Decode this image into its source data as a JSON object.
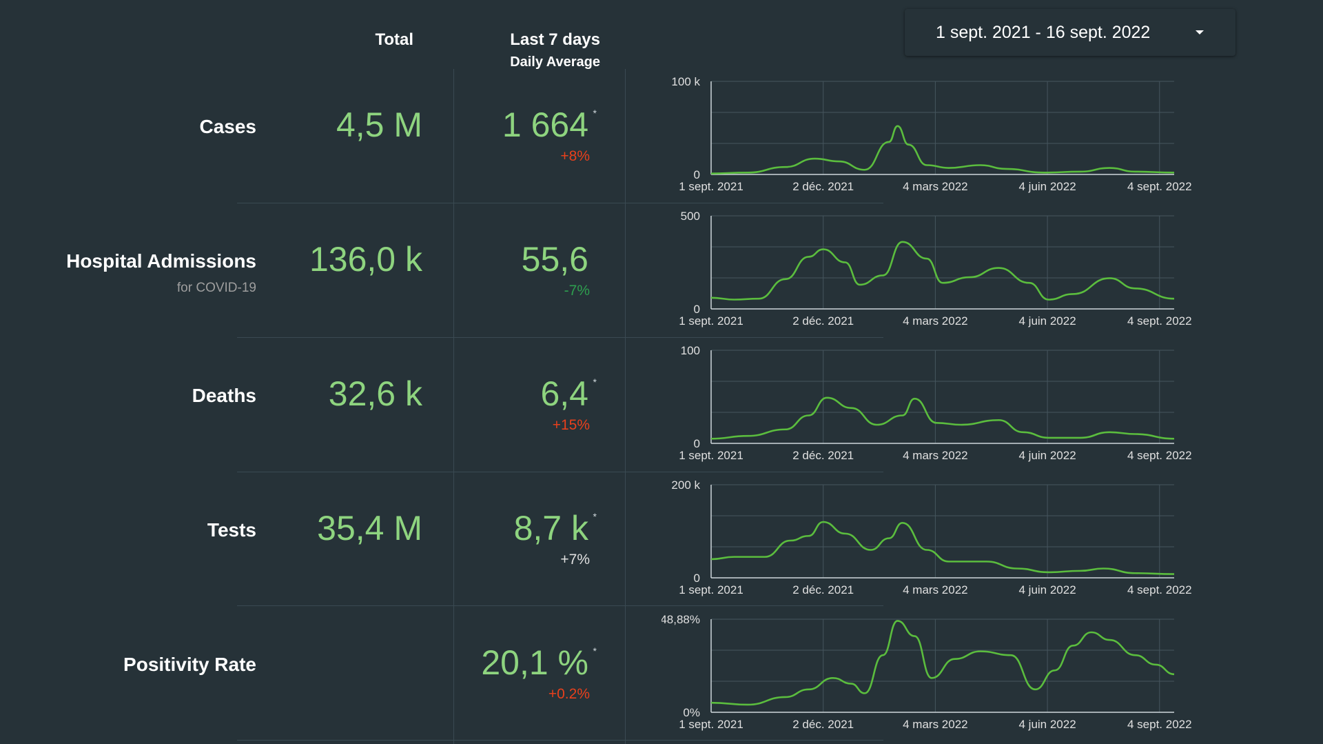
{
  "header": {
    "total": "Total",
    "last7": "Last 7 days",
    "daily_avg": "Daily Average"
  },
  "date_range": {
    "label": "1 sept. 2021 - 16 sept. 2022"
  },
  "colors": {
    "background": "#263238",
    "value_green": "#8ed47f",
    "line_green": "#5bbd3e",
    "increase_red": "#e8401c",
    "decrease_green": "#2e9e4f",
    "neutral": "#e0e0e0"
  },
  "metrics": [
    {
      "label": "Cases",
      "sublabel": "",
      "total": "4,5 M",
      "avg": "1 664",
      "asterisk": "*",
      "change": "+8%",
      "change_color": "#e8401c"
    },
    {
      "label": "Hospital Admissions",
      "sublabel": "for COVID-19",
      "total": "136,0 k",
      "avg": "55,6",
      "asterisk": "",
      "change": "-7%",
      "change_color": "#2e9e4f"
    },
    {
      "label": "Deaths",
      "sublabel": "",
      "total": "32,6 k",
      "avg": "6,4",
      "asterisk": "*",
      "change": "+15%",
      "change_color": "#e8401c"
    },
    {
      "label": "Tests",
      "sublabel": "",
      "total": "35,4 M",
      "avg": "8,7 k",
      "asterisk": "*",
      "change": "+7%",
      "change_color": "#e0e0e0"
    },
    {
      "label": "Positivity Rate",
      "sublabel": "",
      "total": "",
      "avg": "20,1 %",
      "asterisk": "*",
      "change": "+0.2%",
      "change_color": "#e8401c"
    }
  ],
  "chart_data": [
    {
      "type": "line",
      "name": "Cases",
      "x_tick_labels": [
        "1 sept. 2021",
        "2 déc. 2021",
        "4 mars 2022",
        "4 juin 2022",
        "4 sept. 2022"
      ],
      "ylim": [
        0,
        100000
      ],
      "y_tick_labels": [
        "0",
        "100 k"
      ],
      "x": [
        "2021-09-01",
        "2021-10-01",
        "2021-11-01",
        "2021-11-25",
        "2021-12-15",
        "2022-01-05",
        "2022-01-25",
        "2022-02-01",
        "2022-02-10",
        "2022-02-25",
        "2022-03-15",
        "2022-04-10",
        "2022-05-01",
        "2022-06-01",
        "2022-07-01",
        "2022-07-25",
        "2022-08-15",
        "2022-09-16"
      ],
      "values": [
        1000,
        2000,
        8000,
        17000,
        14000,
        5000,
        35000,
        52000,
        32000,
        10000,
        7000,
        10000,
        6000,
        2000,
        3000,
        7000,
        3000,
        2000
      ],
      "grid": true
    },
    {
      "type": "line",
      "name": "Hospital Admissions",
      "x_tick_labels": [
        "1 sept. 2021",
        "2 déc. 2021",
        "4 mars 2022",
        "4 juin 2022",
        "4 sept. 2022"
      ],
      "ylim": [
        0,
        500
      ],
      "y_tick_labels": [
        "0",
        "500"
      ],
      "x": [
        "2021-09-01",
        "2021-09-20",
        "2021-10-10",
        "2021-11-01",
        "2021-11-20",
        "2021-12-02",
        "2021-12-20",
        "2022-01-01",
        "2022-01-20",
        "2022-02-05",
        "2022-02-25",
        "2022-03-10",
        "2022-04-01",
        "2022-04-25",
        "2022-05-20",
        "2022-06-05",
        "2022-06-25",
        "2022-07-25",
        "2022-08-15",
        "2022-09-16"
      ],
      "values": [
        60,
        50,
        55,
        160,
        280,
        320,
        250,
        130,
        180,
        360,
        270,
        140,
        170,
        220,
        140,
        50,
        80,
        165,
        110,
        55
      ],
      "grid": true
    },
    {
      "type": "line",
      "name": "Deaths",
      "x_tick_labels": [
        "1 sept. 2021",
        "2 déc. 2021",
        "4 mars 2022",
        "4 juin 2022",
        "4 sept. 2022"
      ],
      "ylim": [
        0,
        100
      ],
      "y_tick_labels": [
        "0",
        "100"
      ],
      "x": [
        "2021-09-01",
        "2021-10-01",
        "2021-11-01",
        "2021-11-20",
        "2021-12-05",
        "2021-12-25",
        "2022-01-15",
        "2022-02-05",
        "2022-02-15",
        "2022-03-05",
        "2022-03-25",
        "2022-04-25",
        "2022-05-15",
        "2022-06-05",
        "2022-07-01",
        "2022-07-25",
        "2022-08-15",
        "2022-09-16"
      ],
      "values": [
        5,
        8,
        15,
        30,
        49,
        38,
        20,
        30,
        48,
        22,
        20,
        25,
        12,
        6,
        6,
        12,
        10,
        5
      ],
      "grid": true
    },
    {
      "type": "line",
      "name": "Tests",
      "x_tick_labels": [
        "1 sept. 2021",
        "2 déc. 2021",
        "4 mars 2022",
        "4 juin 2022",
        "4 sept. 2022"
      ],
      "ylim": [
        0,
        200000
      ],
      "y_tick_labels": [
        "0",
        "200 k"
      ],
      "x": [
        "2021-09-01",
        "2021-09-20",
        "2021-10-15",
        "2021-11-05",
        "2021-11-20",
        "2021-12-02",
        "2021-12-20",
        "2022-01-10",
        "2022-01-25",
        "2022-02-05",
        "2022-02-25",
        "2022-03-15",
        "2022-04-15",
        "2022-05-10",
        "2022-06-05",
        "2022-07-01",
        "2022-07-20",
        "2022-08-15",
        "2022-09-16"
      ],
      "values": [
        40000,
        45000,
        45000,
        80000,
        90000,
        120000,
        95000,
        60000,
        85000,
        118000,
        60000,
        35000,
        35000,
        20000,
        12000,
        15000,
        20000,
        10000,
        8000
      ],
      "grid": true
    },
    {
      "type": "line",
      "name": "Positivity Rate",
      "x_tick_labels": [
        "1 sept. 2021",
        "2 déc. 2021",
        "4 mars 2022",
        "4 juin 2022",
        "4 sept. 2022"
      ],
      "ylim": [
        0,
        48.88
      ],
      "y_tick_labels": [
        "0%",
        "48,88%"
      ],
      "x": [
        "2021-09-01",
        "2021-10-01",
        "2021-11-01",
        "2021-11-20",
        "2021-12-10",
        "2021-12-25",
        "2022-01-05",
        "2022-01-20",
        "2022-02-01",
        "2022-02-15",
        "2022-03-01",
        "2022-03-20",
        "2022-04-10",
        "2022-05-05",
        "2022-05-25",
        "2022-06-10",
        "2022-06-25",
        "2022-07-10",
        "2022-07-25",
        "2022-08-15",
        "2022-09-01",
        "2022-09-16"
      ],
      "values": [
        5,
        4,
        8,
        12,
        18,
        15,
        10,
        30,
        48,
        40,
        18,
        28,
        32,
        30,
        12,
        22,
        35,
        42,
        38,
        30,
        25,
        20
      ],
      "grid": true
    }
  ]
}
